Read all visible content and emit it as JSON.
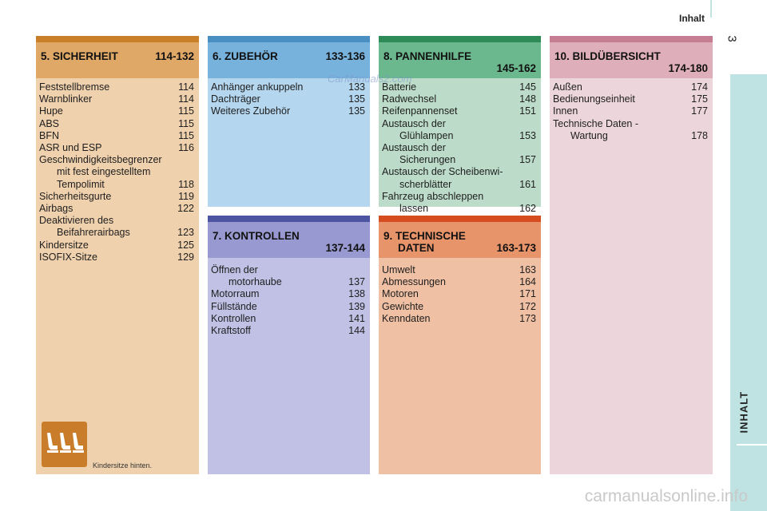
{
  "header": {
    "title": "Inhalt",
    "page_number": "3"
  },
  "side_tab": {
    "label": "INHALT"
  },
  "watermarks": {
    "top": "CarManuals2.com",
    "bottom": "carmanualsonline.info"
  },
  "colors": {
    "s5_top": "#c87f28",
    "s5_head": "#dfa867",
    "s5_body": "#f0d1ad",
    "s6_top": "#4a8fc2",
    "s6_head": "#77b2dd",
    "s6_body": "#b4d6ee",
    "s8_top": "#2e8a57",
    "s8_head": "#6bb88f",
    "s8_body": "#bcdcc9",
    "s10_top": "#c47d92",
    "s10_head": "#deafba",
    "s10_body": "#ecd6dc",
    "s7_top": "#4d54a2",
    "s7_head": "#9899d0",
    "s7_body": "#c0c1e5",
    "s9_top": "#d54d1f",
    "s9_head": "#e8946a",
    "s9_body": "#f0c0a4"
  },
  "sections": {
    "s5": {
      "title": "5. SICHERHEIT",
      "range": "114-132",
      "entries": [
        {
          "text": "Feststellbremse",
          "page": "114"
        },
        {
          "text": "Warnblinker",
          "page": "114"
        },
        {
          "text": "Hupe",
          "page": "115"
        },
        {
          "text": "ABS",
          "page": "115"
        },
        {
          "text": "BFN",
          "page": "115"
        },
        {
          "text": "ASR und ESP",
          "page": "116"
        },
        {
          "text": "Geschwindigkeitsbegrenzer",
          "page": ""
        },
        {
          "text": "mit fest eingestelltem",
          "page": ""
        },
        {
          "text": "Tempolimit",
          "page": "118"
        },
        {
          "text": "Sicherheitsgurte",
          "page": "119"
        },
        {
          "text": "Airbags",
          "page": "122"
        },
        {
          "text": "Deaktivieren des",
          "page": ""
        },
        {
          "text": "Beifahrerairbags",
          "page": "123"
        },
        {
          "text": "Kindersitze",
          "page": "125"
        },
        {
          "text": "ISOFIX-Sitze",
          "page": "129"
        }
      ],
      "icon_caption": "Kindersitze hinten."
    },
    "s6": {
      "title": "6. ZUBEHÖR",
      "range": "133-136",
      "entries": [
        {
          "text": "Anhänger ankuppeln",
          "page": "133"
        },
        {
          "text": "Dachträger",
          "page": "135"
        },
        {
          "text": "Weiteres Zubehör",
          "page": "135"
        }
      ]
    },
    "s8": {
      "title": "8. PANNENHILFE",
      "range": "145-162",
      "entries": [
        {
          "text": "Batterie",
          "page": "145"
        },
        {
          "text": "Radwechsel",
          "page": "148"
        },
        {
          "text": "Reifenpannenset",
          "page": "151"
        },
        {
          "text": "Austausch der",
          "page": ""
        },
        {
          "text": "Glühlampen",
          "page": "153"
        },
        {
          "text": "Austausch der",
          "page": ""
        },
        {
          "text": "Sicherungen",
          "page": "157"
        },
        {
          "text": "Austausch der Scheibenwi-",
          "page": ""
        },
        {
          "text": "scherblätter",
          "page": "161"
        },
        {
          "text": "Fahrzeug abschleppen",
          "page": ""
        },
        {
          "text": "lassen",
          "page": "162"
        }
      ]
    },
    "s10": {
      "title": "10. BILDÜBERSICHT",
      "range": "174-180",
      "entries": [
        {
          "text": "Außen",
          "page": "174"
        },
        {
          "text": "Bedienungseinheit",
          "page": "175"
        },
        {
          "text": "Innen",
          "page": "177"
        },
        {
          "text": "Technische Daten -",
          "page": ""
        },
        {
          "text": "Wartung",
          "page": "178"
        }
      ]
    },
    "s7": {
      "title": "7. KONTROLLEN",
      "range": "137-144",
      "entries": [
        {
          "text": "Öffnen der",
          "page": ""
        },
        {
          "text": "motorhaube",
          "page": "137"
        },
        {
          "text": "Motorraum",
          "page": "138"
        },
        {
          "text": "Füllstände",
          "page": "139"
        },
        {
          "text": "Kontrollen",
          "page": "141"
        },
        {
          "text": "Kraftstoff",
          "page": "144"
        }
      ]
    },
    "s9": {
      "title": "9. TECHNISCHE",
      "title_line2": "DATEN",
      "range": "163-173",
      "entries": [
        {
          "text": "Umwelt",
          "page": "163"
        },
        {
          "text": "Abmessungen",
          "page": "164"
        },
        {
          "text": "Motoren",
          "page": "171"
        },
        {
          "text": "Gewichte",
          "page": "172"
        },
        {
          "text": "Kenndaten",
          "page": "173"
        }
      ]
    }
  }
}
